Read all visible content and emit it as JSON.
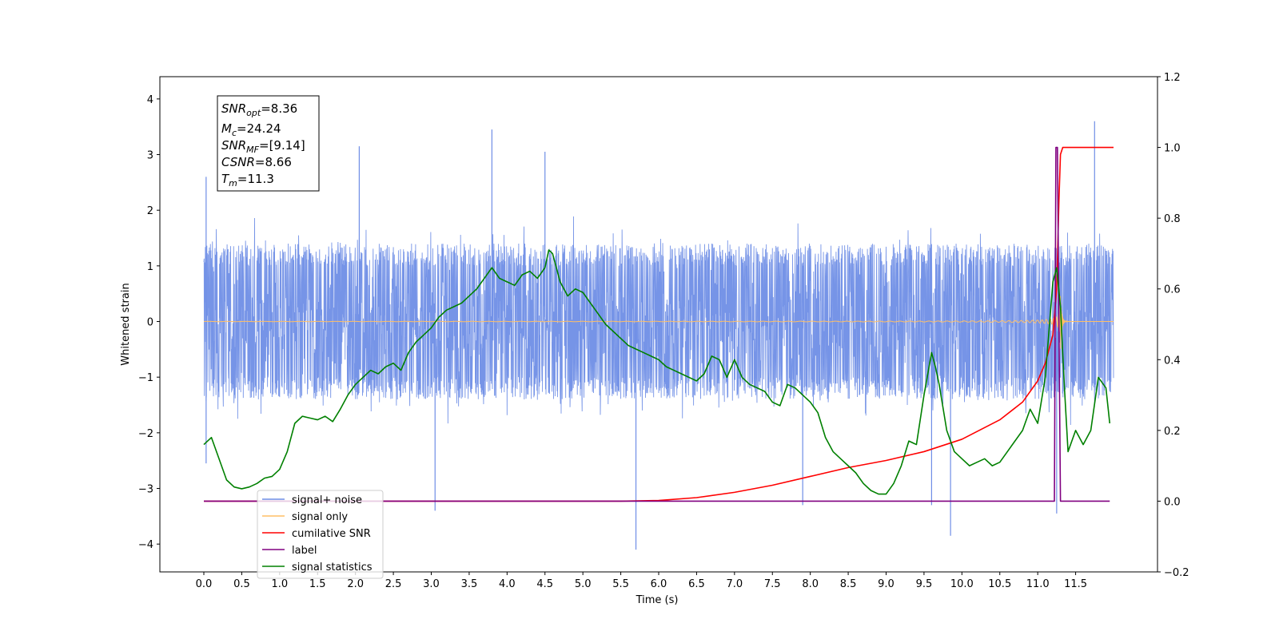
{
  "chart_data": {
    "type": "line",
    "xlabel": "Time (s)",
    "ylabel_left": "Whitened strain",
    "ylabel_right": "",
    "xlim": [
      -0.58,
      12.58
    ],
    "ylim_left": [
      -4.5,
      4.4
    ],
    "ylim_right": [
      -0.2,
      1.2
    ],
    "x_ticks": [
      0.0,
      0.5,
      1.0,
      1.5,
      2.0,
      2.5,
      3.0,
      3.5,
      4.0,
      4.5,
      5.0,
      5.5,
      6.0,
      6.5,
      7.0,
      7.5,
      8.0,
      8.5,
      9.0,
      9.5,
      10.0,
      10.5,
      11.0,
      11.5
    ],
    "x_tick_labels": [
      "0.0",
      "0.5",
      "1.0",
      "1.5",
      "2.0",
      "2.5",
      "3.0",
      "3.5",
      "4.0",
      "4.5",
      "5.0",
      "5.5",
      "6.0",
      "6.5",
      "7.0",
      "7.5",
      "8.0",
      "8.5",
      "9.0",
      "9.5",
      "10.0",
      "10.5",
      "11.0",
      "11.5"
    ],
    "y_left_ticks": [
      -4,
      -3,
      -2,
      -1,
      0,
      1,
      2,
      3,
      4
    ],
    "y_left_tick_labels": [
      "−4",
      "−3",
      "−2",
      "−1",
      "0",
      "1",
      "2",
      "3",
      "4"
    ],
    "y_right_ticks": [
      -0.2,
      0.0,
      0.2,
      0.4,
      0.6,
      0.8,
      1.0,
      1.2
    ],
    "y_right_tick_labels": [
      "−0.2",
      "0.0",
      "0.2",
      "0.4",
      "0.6",
      "0.8",
      "1.0",
      "1.2"
    ],
    "grid": false,
    "legend_position": "lower-left",
    "info_box": {
      "snr_opt": "=8.36",
      "mc": "=24.24",
      "snr_mf": "=[9.14]",
      "csnr": "=8.66",
      "tm": "=11.3"
    },
    "series": [
      {
        "name": "signal+ noise",
        "axis": "left",
        "color": "#6f8ee6",
        "description_only": "dense noise band spanning roughly -2 to 2 with spikes; envelope values below",
        "x_range": [
          0.0,
          12.0
        ],
        "typical_amplitude": 1.3,
        "spike_points": [
          {
            "x": 0.03,
            "y": 2.6
          },
          {
            "x": 0.03,
            "y": -2.55
          },
          {
            "x": 3.05,
            "y": -3.4
          },
          {
            "x": 3.8,
            "y": 3.45
          },
          {
            "x": 5.7,
            "y": -4.1
          },
          {
            "x": 9.85,
            "y": -3.85
          },
          {
            "x": 11.75,
            "y": 3.6
          },
          {
            "x": 11.25,
            "y": -3.45
          },
          {
            "x": 2.05,
            "y": 3.15
          },
          {
            "x": 4.5,
            "y": 3.05
          },
          {
            "x": 9.6,
            "y": -3.3
          },
          {
            "x": 7.9,
            "y": -3.3
          }
        ]
      },
      {
        "name": "signal only",
        "axis": "left",
        "color": "#ffbf66",
        "x_range": [
          0.0,
          12.0
        ],
        "chirp_merger_time": 11.3,
        "peak_amplitude": 0.55
      },
      {
        "name": "cumilative SNR",
        "axis": "right",
        "color": "#ff0000",
        "x": [
          0.0,
          5.5,
          6.0,
          6.5,
          7.0,
          7.5,
          8.0,
          8.5,
          9.0,
          9.5,
          10.0,
          10.5,
          10.8,
          11.0,
          11.1,
          11.2,
          11.25,
          11.28,
          11.3,
          11.33,
          11.4,
          12.0
        ],
        "y": [
          0.0,
          0.0,
          0.002,
          0.01,
          0.025,
          0.045,
          0.07,
          0.095,
          0.115,
          0.14,
          0.175,
          0.23,
          0.28,
          0.34,
          0.39,
          0.47,
          0.6,
          0.85,
          0.98,
          1.0,
          1.0,
          1.0
        ]
      },
      {
        "name": "label",
        "axis": "right",
        "color": "#800080",
        "x": [
          0.0,
          11.22,
          11.24,
          11.26,
          11.3,
          11.32,
          11.95
        ],
        "y": [
          0.0,
          0.0,
          1.0,
          1.0,
          0.0,
          0.0,
          0.0
        ]
      },
      {
        "name": "signal statistics",
        "axis": "right",
        "color": "#008000",
        "x": [
          0.0,
          0.1,
          0.2,
          0.3,
          0.4,
          0.5,
          0.6,
          0.7,
          0.8,
          0.9,
          1.0,
          1.1,
          1.2,
          1.3,
          1.4,
          1.5,
          1.6,
          1.7,
          1.8,
          1.9,
          2.0,
          2.1,
          2.2,
          2.3,
          2.4,
          2.5,
          2.6,
          2.7,
          2.8,
          2.9,
          3.0,
          3.1,
          3.2,
          3.3,
          3.4,
          3.5,
          3.6,
          3.7,
          3.8,
          3.9,
          4.0,
          4.1,
          4.2,
          4.3,
          4.4,
          4.5,
          4.55,
          4.6,
          4.7,
          4.8,
          4.9,
          5.0,
          5.1,
          5.2,
          5.3,
          5.4,
          5.5,
          5.6,
          5.7,
          5.8,
          5.9,
          6.0,
          6.1,
          6.2,
          6.3,
          6.4,
          6.5,
          6.6,
          6.7,
          6.8,
          6.9,
          7.0,
          7.1,
          7.2,
          7.3,
          7.4,
          7.5,
          7.6,
          7.7,
          7.8,
          7.9,
          8.0,
          8.1,
          8.2,
          8.3,
          8.4,
          8.5,
          8.6,
          8.7,
          8.8,
          8.9,
          9.0,
          9.1,
          9.2,
          9.3,
          9.4,
          9.5,
          9.6,
          9.65,
          9.7,
          9.8,
          9.9,
          10.0,
          10.1,
          10.2,
          10.3,
          10.4,
          10.5,
          10.6,
          10.7,
          10.8,
          10.9,
          11.0,
          11.1,
          11.2,
          11.25,
          11.3,
          11.35,
          11.4,
          11.5,
          11.6,
          11.7,
          11.8,
          11.9,
          11.95
        ],
        "y": [
          0.16,
          0.18,
          0.12,
          0.06,
          0.04,
          0.035,
          0.04,
          0.05,
          0.065,
          0.07,
          0.09,
          0.14,
          0.22,
          0.24,
          0.235,
          0.23,
          0.24,
          0.225,
          0.26,
          0.3,
          0.33,
          0.35,
          0.37,
          0.36,
          0.38,
          0.39,
          0.37,
          0.42,
          0.45,
          0.47,
          0.49,
          0.52,
          0.54,
          0.55,
          0.56,
          0.58,
          0.6,
          0.63,
          0.66,
          0.63,
          0.62,
          0.61,
          0.64,
          0.65,
          0.63,
          0.66,
          0.71,
          0.7,
          0.62,
          0.58,
          0.6,
          0.59,
          0.56,
          0.53,
          0.5,
          0.48,
          0.46,
          0.44,
          0.43,
          0.42,
          0.41,
          0.4,
          0.38,
          0.37,
          0.36,
          0.35,
          0.34,
          0.36,
          0.41,
          0.4,
          0.35,
          0.4,
          0.35,
          0.33,
          0.32,
          0.31,
          0.28,
          0.27,
          0.33,
          0.32,
          0.3,
          0.28,
          0.25,
          0.18,
          0.14,
          0.12,
          0.1,
          0.08,
          0.05,
          0.03,
          0.02,
          0.02,
          0.05,
          0.1,
          0.17,
          0.16,
          0.3,
          0.42,
          0.38,
          0.33,
          0.2,
          0.14,
          0.12,
          0.1,
          0.11,
          0.12,
          0.1,
          0.11,
          0.14,
          0.17,
          0.2,
          0.26,
          0.22,
          0.35,
          0.62,
          0.66,
          0.55,
          0.33,
          0.14,
          0.2,
          0.16,
          0.2,
          0.35,
          0.32,
          0.22
        ]
      }
    ]
  },
  "legend": [
    {
      "label": "signal+ noise",
      "color": "#6f8ee6"
    },
    {
      "label": "signal only",
      "color": "#ffbf66"
    },
    {
      "label": "cumilative SNR",
      "color": "#ff0000"
    },
    {
      "label": "label",
      "color": "#800080"
    },
    {
      "label": "signal statistics",
      "color": "#008000"
    }
  ]
}
